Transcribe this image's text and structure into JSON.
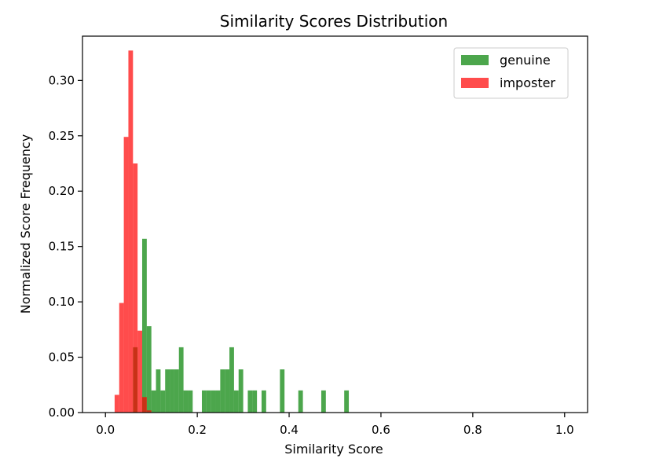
{
  "chart_data": {
    "type": "bar",
    "title": "Similarity Scores Distribution",
    "xlabel": "Similarity Score",
    "ylabel": "Normalized Score Frequency",
    "xlim": [
      -0.05,
      1.05
    ],
    "ylim": [
      0,
      0.34
    ],
    "x_ticks": [
      0.0,
      0.2,
      0.4,
      0.6,
      0.8,
      1.0
    ],
    "x_tick_labels": [
      "0.0",
      "0.2",
      "0.4",
      "0.6",
      "0.8",
      "1.0"
    ],
    "y_ticks": [
      0.0,
      0.05,
      0.1,
      0.15,
      0.2,
      0.25,
      0.3
    ],
    "y_tick_labels": [
      "0.00",
      "0.05",
      "0.10",
      "0.15",
      "0.20",
      "0.25",
      "0.30"
    ],
    "bin_width": 0.01,
    "grid": false,
    "legend_position": "top-right",
    "series": [
      {
        "name": "genuine",
        "color": "#008000",
        "alpha": 0.7,
        "bins": [
          {
            "x": 0.06,
            "y": 0.059
          },
          {
            "x": 0.08,
            "y": 0.157
          },
          {
            "x": 0.09,
            "y": 0.078
          },
          {
            "x": 0.1,
            "y": 0.02
          },
          {
            "x": 0.11,
            "y": 0.039
          },
          {
            "x": 0.12,
            "y": 0.02
          },
          {
            "x": 0.13,
            "y": 0.039
          },
          {
            "x": 0.14,
            "y": 0.039
          },
          {
            "x": 0.15,
            "y": 0.039
          },
          {
            "x": 0.16,
            "y": 0.059
          },
          {
            "x": 0.17,
            "y": 0.02
          },
          {
            "x": 0.18,
            "y": 0.02
          },
          {
            "x": 0.21,
            "y": 0.02
          },
          {
            "x": 0.22,
            "y": 0.02
          },
          {
            "x": 0.23,
            "y": 0.02
          },
          {
            "x": 0.24,
            "y": 0.02
          },
          {
            "x": 0.25,
            "y": 0.039
          },
          {
            "x": 0.26,
            "y": 0.039
          },
          {
            "x": 0.27,
            "y": 0.059
          },
          {
            "x": 0.28,
            "y": 0.02
          },
          {
            "x": 0.29,
            "y": 0.039
          },
          {
            "x": 0.31,
            "y": 0.02
          },
          {
            "x": 0.32,
            "y": 0.02
          },
          {
            "x": 0.34,
            "y": 0.02
          },
          {
            "x": 0.38,
            "y": 0.039
          },
          {
            "x": 0.42,
            "y": 0.02
          },
          {
            "x": 0.47,
            "y": 0.02
          },
          {
            "x": 0.52,
            "y": 0.02
          }
        ]
      },
      {
        "name": "imposter",
        "color": "#ff0000",
        "alpha": 0.7,
        "bins": [
          {
            "x": 0.02,
            "y": 0.016
          },
          {
            "x": 0.03,
            "y": 0.099
          },
          {
            "x": 0.04,
            "y": 0.249
          },
          {
            "x": 0.05,
            "y": 0.327
          },
          {
            "x": 0.06,
            "y": 0.225
          },
          {
            "x": 0.07,
            "y": 0.074
          },
          {
            "x": 0.08,
            "y": 0.014
          },
          {
            "x": 0.09,
            "y": 0.002
          }
        ]
      }
    ]
  }
}
